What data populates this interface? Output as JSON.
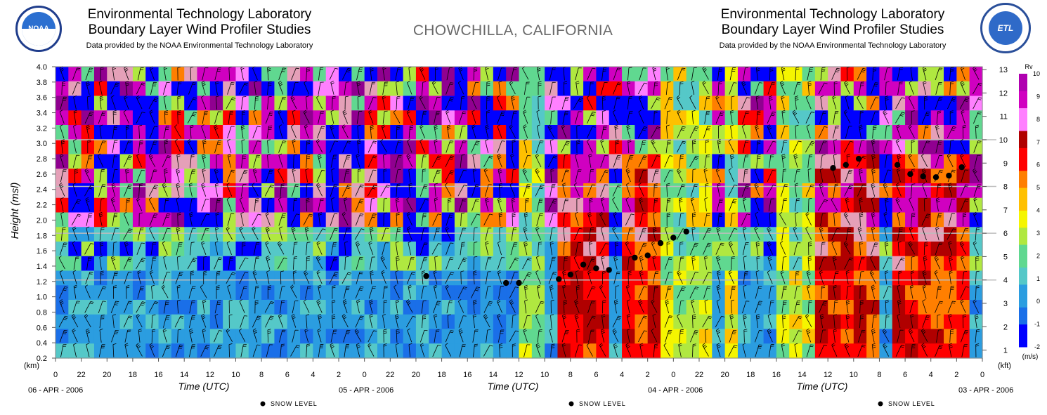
{
  "header_left": {
    "line1": "Environmental Technology Laboratory",
    "line2": "Boundary Layer Wind Profiler Studies",
    "line3": "Data provided by the NOAA Environmental Technology Laboratory"
  },
  "header_right": {
    "line1": "Environmental Technology Laboratory",
    "line2": "Boundary Layer Wind Profiler Studies",
    "line3": "Data provided by the NOAA Environmental Technology Laboratory"
  },
  "site_title": "CHOWCHILLA, CALIFORNIA",
  "logos": {
    "left_text": "NOAA",
    "right_text": "ETL"
  },
  "colors": {
    "scale": [
      "#0000ff",
      "#1a6fe8",
      "#2b9de0",
      "#55c8c8",
      "#60d890",
      "#b0e840",
      "#f5f500",
      "#ffc000",
      "#ff7f00",
      "#ff0000",
      "#b00000",
      "#e5a0b8",
      "#ff80ff",
      "#d000c0",
      "#900090"
    ],
    "frame": "#888888",
    "hline": "#bdbdbd"
  },
  "chart_data": {
    "type": "heatmap",
    "title": "CHOWCHILLA, CALIFORNIA",
    "ylabel": "Height (msl)",
    "ylabel_left_unit": "(km)",
    "yright_unit": "(kft)",
    "xlabel": "Time (UTC)",
    "ylim_km": [
      0.2,
      4.0
    ],
    "y_ticks_km": [
      "0.2",
      "0.4",
      "0.6",
      "0.8",
      "1.0",
      "1.2",
      "1.4",
      "1.6",
      "1.8",
      "2.0",
      "2.2",
      "2.4",
      "2.6",
      "2.8",
      "3.0",
      "3.2",
      "3.4",
      "3.6",
      "3.8",
      "4.0"
    ],
    "y_ticks_kft": [
      "1",
      "2",
      "3",
      "4",
      "5",
      "6",
      "7",
      "8",
      "9",
      "10",
      "11",
      "12",
      "13"
    ],
    "x_tick_labels": [
      "0",
      "22",
      "20",
      "18",
      "16",
      "14",
      "12",
      "10",
      "8",
      "6",
      "4",
      "2",
      "0",
      "22",
      "20",
      "18",
      "16",
      "14",
      "12",
      "10",
      "8",
      "6",
      "4",
      "2",
      "0",
      "22",
      "20",
      "18",
      "16",
      "14",
      "12",
      "10",
      "8",
      "6",
      "4",
      "2",
      "0"
    ],
    "x_axis_reversed": true,
    "date_labels": [
      "06 - APR - 2006",
      "05 - APR - 2006",
      "04 - APR - 2006",
      "03 - APR - 2006"
    ],
    "time_labels": [
      "Time (UTC)",
      "Time (UTC)",
      "Time (UTC)"
    ],
    "colorbar": {
      "title": "Rv",
      "unit": "(m/s)",
      "tick_labels": [
        "-2",
        "-1",
        "0",
        "1",
        "2",
        "3",
        "4",
        "5",
        "6",
        "7",
        "8",
        "9",
        "10"
      ],
      "range": [
        -2,
        10
      ]
    },
    "snow_level": {
      "legend": [
        "SNOW LEVEL",
        "SNOW LEVEL",
        "SNOW LEVEL"
      ],
      "points": [
        {
          "hours_before_end": 43.2,
          "km": 1.27
        },
        {
          "hours_before_end": 37.0,
          "km": 1.18
        },
        {
          "hours_before_end": 36.0,
          "km": 1.18
        },
        {
          "hours_before_end": 32.9,
          "km": 1.23
        },
        {
          "hours_before_end": 32.0,
          "km": 1.29
        },
        {
          "hours_before_end": 31.0,
          "km": 1.42
        },
        {
          "hours_before_end": 30.0,
          "km": 1.37
        },
        {
          "hours_before_end": 29.0,
          "km": 1.35
        },
        {
          "hours_before_end": 27.0,
          "km": 1.51
        },
        {
          "hours_before_end": 26.0,
          "km": 1.54
        },
        {
          "hours_before_end": 25.0,
          "km": 1.7
        },
        {
          "hours_before_end": 24.0,
          "km": 1.77
        },
        {
          "hours_before_end": 23.0,
          "km": 1.85
        },
        {
          "hours_before_end": 11.6,
          "km": 2.68
        },
        {
          "hours_before_end": 10.6,
          "km": 2.72
        },
        {
          "hours_before_end": 9.6,
          "km": 2.8
        },
        {
          "hours_before_end": 6.6,
          "km": 2.72
        },
        {
          "hours_before_end": 5.6,
          "km": 2.6
        },
        {
          "hours_before_end": 4.6,
          "km": 2.57
        },
        {
          "hours_before_end": 3.6,
          "km": 2.56
        },
        {
          "hours_before_end": 2.6,
          "km": 2.58
        },
        {
          "hours_before_end": 1.6,
          "km": 2.69
        }
      ]
    },
    "reference_lines_kft": [
      4,
      6,
      8,
      10
    ],
    "grid": false,
    "time_span_hours": 72,
    "height_gates": 20,
    "time_columns": 72
  }
}
